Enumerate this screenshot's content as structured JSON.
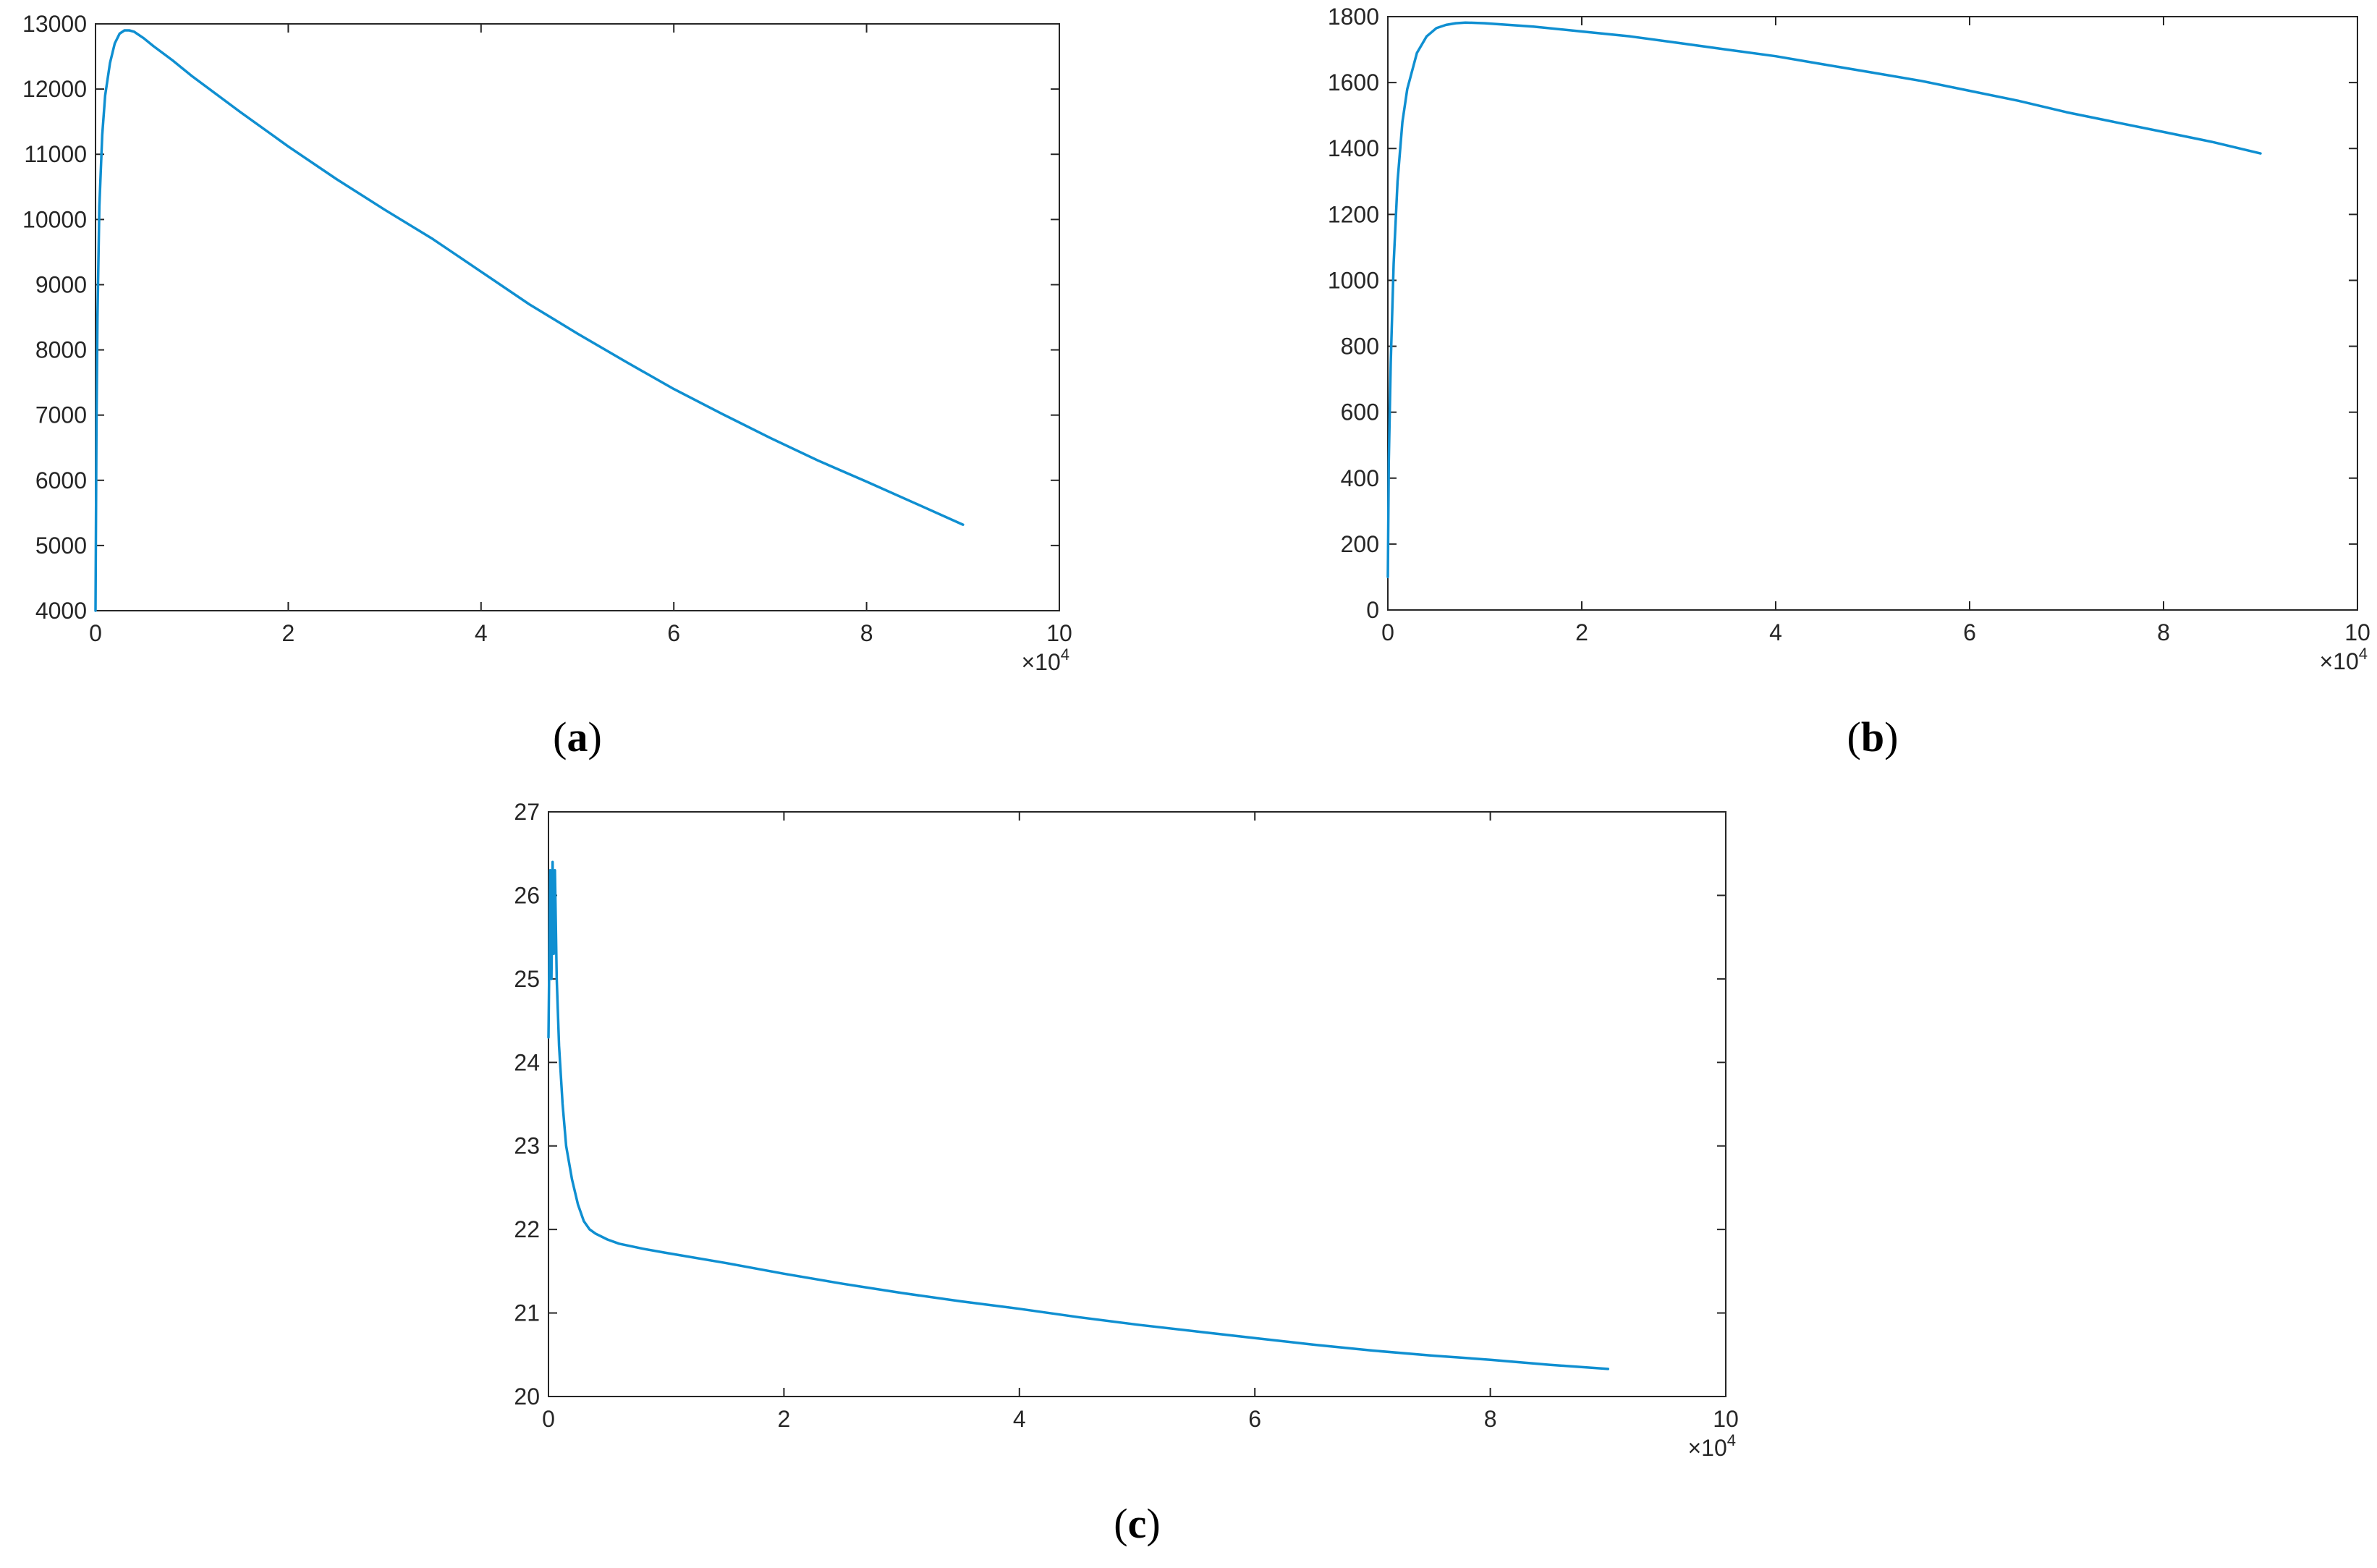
{
  "colors": {
    "series": "#0f8fd1",
    "axis": "#262626",
    "background": "#ffffff"
  },
  "chart_data": [
    {
      "type": "line",
      "panel_label": "a",
      "title": "",
      "xlabel": "",
      "ylabel": "",
      "x_exponent_label": "×10",
      "x_exponent_power": "4",
      "xlim": [
        0,
        100000
      ],
      "ylim": [
        4000,
        13000
      ],
      "xticks": [
        0,
        2,
        4,
        6,
        8,
        10
      ],
      "xtick_labels": [
        "0",
        "2",
        "4",
        "6",
        "8",
        "10"
      ],
      "yticks": [
        4000,
        5000,
        6000,
        7000,
        8000,
        9000,
        10000,
        11000,
        12000,
        13000
      ],
      "ytick_labels": [
        "4000",
        "5000",
        "6000",
        "7000",
        "8000",
        "9000",
        "10000",
        "11000",
        "12000",
        "13000"
      ],
      "grid": false,
      "series": [
        {
          "x": [
            0,
            100,
            200,
            400,
            700,
            1000,
            1500,
            2000,
            2500,
            3000,
            3500,
            4000,
            5000,
            6000,
            8000,
            10000,
            15000,
            20000,
            25000,
            30000,
            35000,
            40000,
            45000,
            50000,
            55000,
            60000,
            65000,
            70000,
            75000,
            80000,
            85000,
            90000
          ],
          "y": [
            4000,
            6800,
            8500,
            10200,
            11300,
            11900,
            12400,
            12700,
            12850,
            12900,
            12900,
            12880,
            12780,
            12660,
            12440,
            12200,
            11650,
            11120,
            10620,
            10150,
            9700,
            9200,
            8700,
            8250,
            7820,
            7400,
            7020,
            6650,
            6300,
            5980,
            5650,
            5320
          ]
        }
      ]
    },
    {
      "type": "line",
      "panel_label": "b",
      "title": "",
      "xlabel": "",
      "ylabel": "",
      "x_exponent_label": "×10",
      "x_exponent_power": "4",
      "xlim": [
        0,
        100000
      ],
      "ylim": [
        0,
        1800
      ],
      "xticks": [
        0,
        2,
        4,
        6,
        8,
        10
      ],
      "xtick_labels": [
        "0",
        "2",
        "4",
        "6",
        "8",
        "10"
      ],
      "yticks": [
        0,
        200,
        400,
        600,
        800,
        1000,
        1200,
        1400,
        1600,
        1800
      ],
      "ytick_labels": [
        "0",
        "200",
        "400",
        "600",
        "800",
        "1000",
        "1200",
        "1400",
        "1600",
        "1800"
      ],
      "grid": false,
      "series": [
        {
          "x": [
            0,
            100,
            300,
            600,
            1000,
            1500,
            2000,
            3000,
            4000,
            5000,
            6000,
            7000,
            8000,
            10000,
            15000,
            20000,
            25000,
            30000,
            35000,
            40000,
            45000,
            50000,
            55000,
            60000,
            65000,
            70000,
            75000,
            80000,
            85000,
            90000
          ],
          "y": [
            100,
            450,
            750,
            1050,
            1300,
            1480,
            1580,
            1690,
            1740,
            1765,
            1775,
            1780,
            1782,
            1780,
            1770,
            1755,
            1740,
            1720,
            1700,
            1680,
            1655,
            1630,
            1605,
            1575,
            1545,
            1510,
            1480,
            1450,
            1420,
            1385
          ]
        }
      ]
    },
    {
      "type": "line",
      "panel_label": "c",
      "title": "",
      "xlabel": "",
      "ylabel": "",
      "x_exponent_label": "×10",
      "x_exponent_power": "4",
      "xlim": [
        0,
        100000
      ],
      "ylim": [
        20,
        27
      ],
      "xticks": [
        0,
        2,
        4,
        6,
        8,
        10
      ],
      "xtick_labels": [
        "0",
        "2",
        "4",
        "6",
        "8",
        "10"
      ],
      "yticks": [
        20,
        21,
        22,
        23,
        24,
        25,
        26,
        27
      ],
      "ytick_labels": [
        "20",
        "21",
        "22",
        "23",
        "24",
        "25",
        "26",
        "27"
      ],
      "grid": false,
      "series": [
        {
          "x": [
            0,
            150,
            250,
            350,
            450,
            550,
            700,
            900,
            1200,
            1500,
            2000,
            2500,
            3000,
            3500,
            4000,
            5000,
            6000,
            8000,
            10000,
            15000,
            20000,
            25000,
            30000,
            35000,
            40000,
            45000,
            50000,
            55000,
            60000,
            65000,
            70000,
            75000,
            80000,
            85000,
            90000
          ],
          "y": [
            24.3,
            26.3,
            25.0,
            26.4,
            25.3,
            26.3,
            25.0,
            24.2,
            23.5,
            23.0,
            22.6,
            22.3,
            22.1,
            22.0,
            21.95,
            21.88,
            21.83,
            21.77,
            21.72,
            21.6,
            21.47,
            21.35,
            21.24,
            21.14,
            21.05,
            20.95,
            20.86,
            20.78,
            20.7,
            20.62,
            20.55,
            20.49,
            20.44,
            20.38,
            20.33
          ]
        }
      ]
    }
  ]
}
